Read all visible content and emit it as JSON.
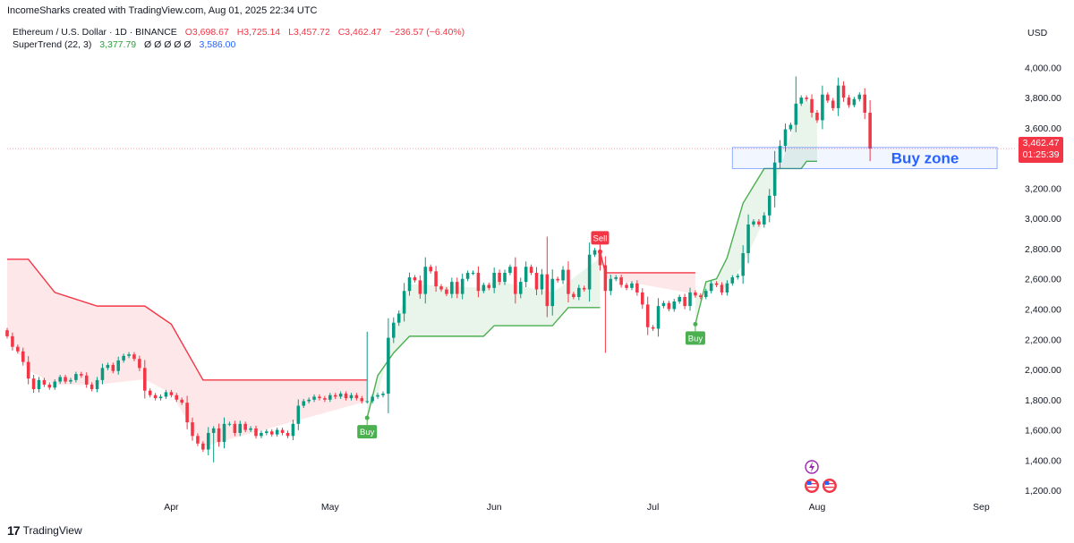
{
  "header": {
    "attribution": "IncomeSharks created with TradingView.com, Aug 01, 2025 22:34 UTC"
  },
  "legend": {
    "symbol": "Ethereum / U.S. Dollar · 1D · BINANCE",
    "open": "O3,698.67",
    "high": "H3,725.14",
    "low": "L3,457.72",
    "close": "C3,462.47",
    "change": "−236.57 (−6.40%)",
    "indicator_name": "SuperTrend (22, 3)",
    "indicator_value": "3,377.79",
    "indicator_zeros": "Ø Ø Ø Ø Ø",
    "indicator_value2": "3,586.00"
  },
  "price_axis": {
    "currency": "USD",
    "last_price": "3,462.47",
    "countdown": "01:25:39"
  },
  "footer": {
    "brand": "TradingView"
  },
  "colors": {
    "up": "#089981",
    "down": "#f23645",
    "supertrend_up": "#4caf50",
    "supertrend_down": "#f23645",
    "buy_zone": "#2962ff"
  },
  "chart_data": {
    "type": "candlestick",
    "title": "Ethereum / U.S. Dollar · 1D · BINANCE",
    "ylim": [
      1100,
      4150
    ],
    "y_ticks": [
      1200,
      1400,
      1600,
      1800,
      2000,
      2200,
      2400,
      2600,
      2800,
      3000,
      3200,
      3400,
      3600,
      3800,
      4000
    ],
    "y_tick_labels": [
      "1,200.00",
      "1,400.00",
      "1,600.00",
      "1,800.00",
      "2,000.00",
      "2,200.00",
      "2,400.00",
      "2,600.00",
      "2,800.00",
      "3,000.00",
      "3,200.00",
      "3,400.00",
      "3,600.00",
      "3,800.00",
      "4,000.00"
    ],
    "x_start": "2025-03-01",
    "x_end": "2025-09-05",
    "x_ticks": [
      {
        "date": "2025-04-01",
        "label": "Apr"
      },
      {
        "date": "2025-05-01",
        "label": "May"
      },
      {
        "date": "2025-06-01",
        "label": "Jun"
      },
      {
        "date": "2025-07-01",
        "label": "Jul"
      },
      {
        "date": "2025-08-01",
        "label": "Aug"
      },
      {
        "date": "2025-09-01",
        "label": "Sep"
      }
    ],
    "candle_start": "2025-03-01",
    "closes": [
      2220,
      2150,
      2120,
      2050,
      1940,
      1870,
      1930,
      1900,
      1880,
      1920,
      1950,
      1920,
      1930,
      1970,
      1960,
      1900,
      1870,
      1930,
      2010,
      2030,
      1990,
      2060,
      2090,
      2100,
      2070,
      2010,
      1860,
      1830,
      1810,
      1820,
      1850,
      1830,
      1800,
      1780,
      1650,
      1560,
      1510,
      1470,
      1580,
      1610,
      1520,
      1640,
      1640,
      1580,
      1640,
      1600,
      1610,
      1560,
      1580,
      1590,
      1570,
      1600,
      1580,
      1560,
      1640,
      1760,
      1790,
      1800,
      1820,
      1810,
      1800,
      1830,
      1820,
      1840,
      1810,
      1830,
      1810,
      1790,
      1790,
      1820,
      1830,
      1840,
      2210,
      2310,
      2370,
      2520,
      2610,
      2590,
      2500,
      2680,
      2650,
      2550,
      2530,
      2500,
      2580,
      2500,
      2600,
      2640,
      2640,
      2520,
      2560,
      2540,
      2640,
      2580,
      2640,
      2680,
      2500,
      2580,
      2680,
      2640,
      2530,
      2630,
      2420,
      2600,
      2590,
      2660,
      2500,
      2480,
      2540,
      2530,
      2760,
      2790,
      2690,
      2520,
      2600,
      2610,
      2560,
      2540,
      2570,
      2510,
      2430,
      2280,
      2270,
      2420,
      2440,
      2400,
      2450,
      2480,
      2420,
      2510,
      2490,
      2480,
      2520,
      2570,
      2560,
      2510,
      2570,
      2610,
      2620,
      2770,
      2960,
      2980,
      2960,
      3020,
      3150,
      3370,
      3480,
      3590,
      3620,
      3760,
      3800,
      3790,
      3700,
      3650,
      3820,
      3780,
      3730,
      3880,
      3800,
      3750,
      3790,
      3820,
      3700,
      3462.47
    ],
    "highs_extra": {
      "2025-05-08": 2250,
      "2025-06-11": 2880,
      "2025-07-28": 3940
    },
    "lows_extra": {
      "2025-04-09": 1385,
      "2025-06-22": 2110
    },
    "supertrend": [
      {
        "date": "2025-03-01",
        "value": 2730,
        "dir": "down"
      },
      {
        "date": "2025-03-05",
        "value": 2730,
        "dir": "down"
      },
      {
        "date": "2025-03-10",
        "value": 2510,
        "dir": "down"
      },
      {
        "date": "2025-03-18",
        "value": 2420,
        "dir": "down"
      },
      {
        "date": "2025-03-27",
        "value": 2420,
        "dir": "down"
      },
      {
        "date": "2025-04-01",
        "value": 2300,
        "dir": "down"
      },
      {
        "date": "2025-04-07",
        "value": 1930,
        "dir": "down"
      },
      {
        "date": "2025-05-08",
        "value": 1930,
        "dir": "down"
      },
      {
        "date": "2025-05-08",
        "value": 1680,
        "dir": "up"
      },
      {
        "date": "2025-05-10",
        "value": 1960,
        "dir": "up"
      },
      {
        "date": "2025-05-13",
        "value": 2110,
        "dir": "up"
      },
      {
        "date": "2025-05-16",
        "value": 2220,
        "dir": "up"
      },
      {
        "date": "2025-05-30",
        "value": 2220,
        "dir": "up"
      },
      {
        "date": "2025-06-01",
        "value": 2290,
        "dir": "up"
      },
      {
        "date": "2025-06-12",
        "value": 2290,
        "dir": "up"
      },
      {
        "date": "2025-06-15",
        "value": 2410,
        "dir": "up"
      },
      {
        "date": "2025-06-21",
        "value": 2410,
        "dir": "up"
      },
      {
        "date": "2025-06-21",
        "value": 2780,
        "dir": "down"
      },
      {
        "date": "2025-06-22",
        "value": 2640,
        "dir": "down"
      },
      {
        "date": "2025-07-09",
        "value": 2640,
        "dir": "down"
      },
      {
        "date": "2025-07-09",
        "value": 2300,
        "dir": "up"
      },
      {
        "date": "2025-07-11",
        "value": 2580,
        "dir": "up"
      },
      {
        "date": "2025-07-13",
        "value": 2600,
        "dir": "up"
      },
      {
        "date": "2025-07-15",
        "value": 2740,
        "dir": "up"
      },
      {
        "date": "2025-07-18",
        "value": 3100,
        "dir": "up"
      },
      {
        "date": "2025-07-22",
        "value": 3330,
        "dir": "up"
      },
      {
        "date": "2025-07-29",
        "value": 3330,
        "dir": "up"
      },
      {
        "date": "2025-07-30",
        "value": 3378,
        "dir": "up"
      },
      {
        "date": "2025-08-01",
        "value": 3378,
        "dir": "up"
      }
    ],
    "signals": [
      {
        "date": "2025-05-08",
        "label": "Buy",
        "value": 1680,
        "type": "buy"
      },
      {
        "date": "2025-06-21",
        "label": "Sell",
        "value": 2780,
        "type": "sell"
      },
      {
        "date": "2025-07-09",
        "label": "Buy",
        "value": 2300,
        "type": "buy"
      }
    ],
    "annotations": [
      {
        "label": "Buy zone",
        "date_start": "2025-07-16",
        "date_end": "2025-09-04",
        "y_low": 3330,
        "y_high": 3470
      }
    ],
    "last_price_line": 3462.47
  }
}
